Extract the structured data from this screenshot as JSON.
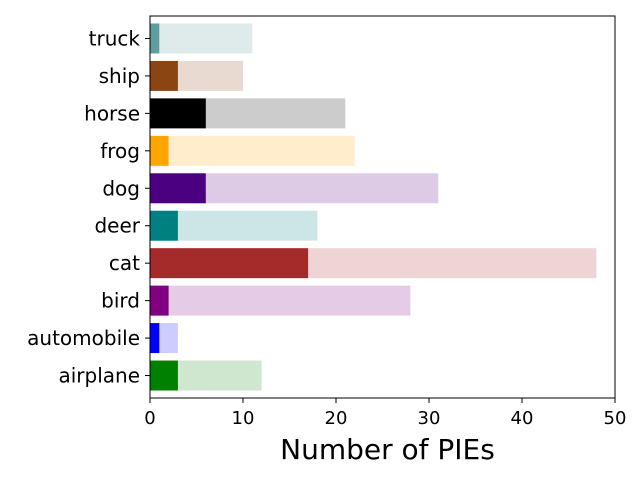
{
  "chart_data": {
    "type": "bar",
    "orientation": "horizontal",
    "stacked": "overlay",
    "title": "",
    "xlabel": "Number of PIEs",
    "ylabel": "",
    "xlim": [
      0,
      50
    ],
    "xticks": [
      0,
      10,
      20,
      30,
      40,
      50
    ],
    "grid": false,
    "legend": "none",
    "categories": [
      "airplane",
      "automobile",
      "bird",
      "cat",
      "deer",
      "dog",
      "frog",
      "horse",
      "ship",
      "truck"
    ],
    "series": [
      {
        "values": [
          12,
          3,
          28,
          48,
          18,
          31,
          22,
          21,
          10,
          11
        ],
        "colors": [
          "#cfe6cf",
          "#ccccff",
          "#e6cbe6",
          "#eed4d4",
          "#cce6e6",
          "#ddcbe6",
          "#ffedcc",
          "#cccccc",
          "#e8dad0",
          "#dfebeb"
        ]
      },
      {
        "values": [
          3,
          1,
          2,
          17,
          3,
          6,
          2,
          6,
          3,
          1
        ],
        "colors": [
          "#008000",
          "#0000ff",
          "#800080",
          "#a52a2a",
          "#008080",
          "#4b0082",
          "#ffa500",
          "#000000",
          "#8b4513",
          "#5f9ea0"
        ]
      }
    ]
  }
}
